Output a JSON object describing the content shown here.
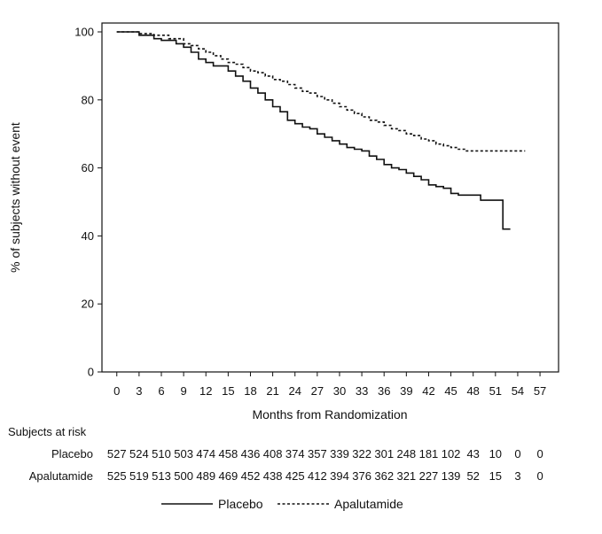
{
  "chart_data": {
    "type": "line",
    "step": true,
    "xlabel": "Months from Randomization",
    "ylabel": "% of subjects without event",
    "xlim": [
      -2,
      59.5
    ],
    "ylim": [
      0,
      100
    ],
    "xticks": [
      0,
      3,
      6,
      9,
      12,
      15,
      18,
      21,
      24,
      27,
      30,
      33,
      36,
      39,
      42,
      45,
      48,
      51,
      54,
      57
    ],
    "yticks": [
      0,
      20,
      40,
      60,
      80,
      100
    ],
    "grid": false,
    "legend_position": "bottom",
    "series": [
      {
        "name": "Placebo",
        "line_style": "solid",
        "color": "#111111",
        "x": [
          0,
          3,
          5,
          6,
          8,
          9,
          10,
          11,
          12,
          13,
          15,
          16,
          17,
          18,
          19,
          20,
          21,
          22,
          23,
          24,
          25,
          26,
          27,
          28,
          29,
          30,
          31,
          32,
          33,
          34,
          35,
          36,
          37,
          38,
          39,
          40,
          41,
          42,
          43,
          44,
          45,
          46,
          48,
          49,
          50,
          51,
          52,
          52,
          53
        ],
        "y": [
          100,
          99,
          98,
          97.5,
          96.5,
          95.5,
          94,
          92,
          91,
          90,
          88.5,
          87,
          85.5,
          83.5,
          82,
          80,
          78,
          76.5,
          74,
          73,
          72,
          71.5,
          70,
          69,
          68,
          67,
          66,
          65.5,
          65,
          63.5,
          62.5,
          61,
          60,
          59.5,
          58.5,
          57.5,
          56.5,
          55,
          54.5,
          54,
          52.5,
          52,
          52,
          50.5,
          50.5,
          50.5,
          50.5,
          42,
          42
        ]
      },
      {
        "name": "Apalutamide",
        "line_style": "dashed",
        "color": "#111111",
        "x": [
          0,
          3,
          5,
          7,
          9,
          10,
          11,
          12,
          13,
          14,
          15,
          16,
          17,
          18,
          19,
          20,
          21,
          22,
          23,
          24,
          25,
          26,
          27,
          28,
          29,
          30,
          31,
          32,
          33,
          34,
          35,
          36,
          37,
          38,
          39,
          40,
          41,
          42,
          43,
          44,
          45,
          46,
          47,
          48,
          50,
          52,
          55
        ],
        "y": [
          100,
          99.5,
          99,
          98,
          96.5,
          96,
          95,
          94,
          93,
          92,
          91,
          90.5,
          89.5,
          88.5,
          88,
          87,
          86,
          85.5,
          84.5,
          83.5,
          82.5,
          82,
          81,
          80,
          79,
          78,
          77,
          76,
          75,
          74,
          73.5,
          72.5,
          71.5,
          71,
          70,
          69.5,
          68.5,
          68,
          67,
          66.5,
          66,
          65.5,
          65,
          65,
          65,
          65,
          65
        ]
      }
    ],
    "risk_table": {
      "title": "Subjects at risk",
      "rows": [
        {
          "name": "Placebo",
          "counts": [
            "527",
            "524",
            "510",
            "503",
            "474",
            "458",
            "436",
            "408",
            "374",
            "357",
            "339",
            "322",
            "301",
            "248",
            "181",
            "102",
            "43",
            "10",
            "0",
            "0"
          ]
        },
        {
          "name": "Apalutamide",
          "counts": [
            "525",
            "519",
            "513",
            "500",
            "489",
            "469",
            "452",
            "438",
            "425",
            "412",
            "394",
            "376",
            "362",
            "321",
            "227",
            "139",
            "52",
            "15",
            "3",
            "0"
          ]
        }
      ]
    }
  }
}
